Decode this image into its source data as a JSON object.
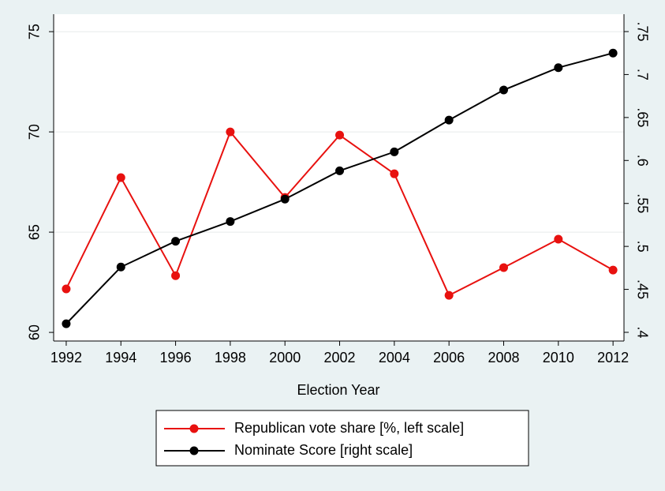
{
  "chart_data": {
    "type": "line",
    "x_label": "Election Year",
    "x": [
      1992,
      1994,
      1996,
      1998,
      2000,
      2002,
      2004,
      2006,
      2008,
      2010,
      2012
    ],
    "xlim": [
      1991.54,
      2012.4
    ],
    "xticks": [
      1992,
      1994,
      1996,
      1998,
      2000,
      2002,
      2004,
      2006,
      2008,
      2010,
      2012
    ],
    "ylim": [
      59.57,
      75.87
    ],
    "yticks": [
      60,
      65,
      70,
      75
    ],
    "y2lim": [
      0.3899,
      0.7702
    ],
    "y2ticks": [
      {
        "value": 0.4,
        "label": ".4"
      },
      {
        "value": 0.45,
        "label": ".45"
      },
      {
        "value": 0.5,
        "label": ".5"
      },
      {
        "value": 0.55,
        "label": ".55"
      },
      {
        "value": 0.6,
        "label": ".6"
      },
      {
        "value": 0.65,
        "label": ".65"
      },
      {
        "value": 0.7,
        "label": ".7"
      },
      {
        "value": 0.75,
        "label": ".75"
      }
    ],
    "grid": true,
    "legend": "bottom",
    "series": [
      {
        "name": "Republican vote share [%, left scale]",
        "color": "#e8110f",
        "values": [
          62.17,
          67.72,
          62.83,
          70.0,
          66.73,
          69.84,
          67.91,
          61.85,
          63.23,
          64.65,
          63.11
        ]
      },
      {
        "name": "Nominate Score [right scale]",
        "color": "#000000",
        "axis": "y2",
        "values": [
          0.41,
          0.476,
          0.506,
          0.529,
          0.555,
          0.588,
          0.61,
          0.647,
          0.682,
          0.708,
          0.725
        ]
      }
    ]
  }
}
